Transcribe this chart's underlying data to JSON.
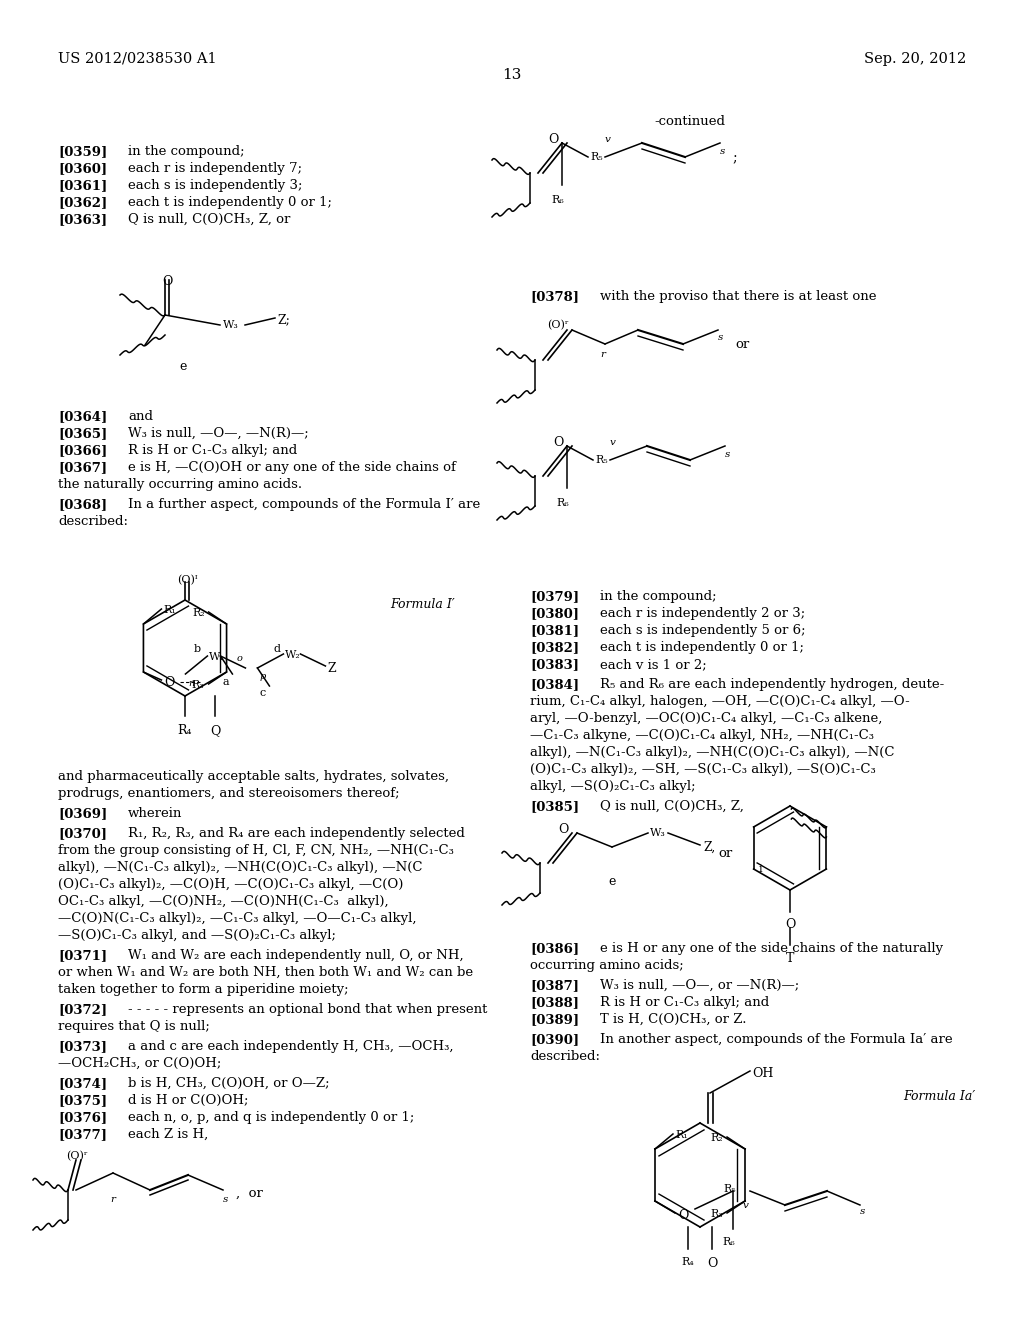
{
  "page_number": "13",
  "header_left": "US 2012/0238530 A1",
  "header_right": "Sep. 20, 2012",
  "background_color": "#ffffff",
  "text_color": "#000000",
  "figsize": [
    10.24,
    13.2
  ],
  "dpi": 100
}
